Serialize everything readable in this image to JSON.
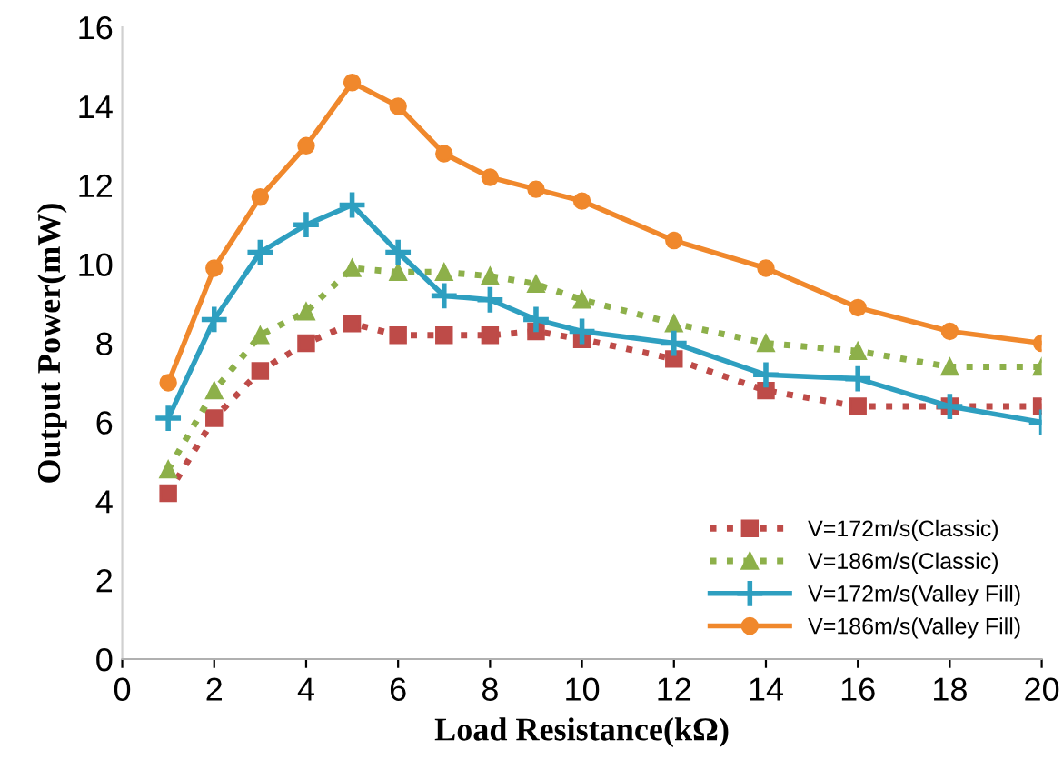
{
  "chart_data": {
    "type": "line",
    "xlabel": "Load Resistance(kΩ)",
    "ylabel": "Output Power(mW)",
    "x": [
      1,
      2,
      3,
      4,
      5,
      6,
      7,
      8,
      9,
      10,
      12,
      14,
      16,
      18,
      20
    ],
    "xlim": [
      0,
      20
    ],
    "xticks": [
      0,
      2,
      4,
      6,
      8,
      10,
      12,
      14,
      16,
      18,
      20
    ],
    "ylim": [
      0,
      16
    ],
    "yticks": [
      0,
      2,
      4,
      6,
      8,
      10,
      12,
      14,
      16
    ],
    "grid": false,
    "legend": "bottom right",
    "series": [
      {
        "name": "V=172m/s(Classic)",
        "color": "#be4b48",
        "marker": "square",
        "line_style": "dotted",
        "values": [
          4.2,
          6.1,
          7.3,
          8.0,
          8.5,
          8.2,
          8.2,
          8.2,
          8.3,
          8.1,
          7.6,
          6.8,
          6.4,
          6.4,
          6.4
        ]
      },
      {
        "name": "V=186m/s(Classic)",
        "color": "#8db04a",
        "marker": "triangle",
        "line_style": "dotted",
        "values": [
          4.8,
          6.8,
          8.2,
          8.8,
          9.9,
          9.8,
          9.8,
          9.7,
          9.5,
          9.1,
          8.5,
          8.0,
          7.8,
          7.4,
          7.4
        ]
      },
      {
        "name": "V=172m/s(Valley Fill)",
        "color": "#2e9fc0",
        "marker": "cross",
        "line_style": "solid",
        "values": [
          6.1,
          8.6,
          10.3,
          11.0,
          11.5,
          10.3,
          9.2,
          9.1,
          8.6,
          8.3,
          8.0,
          7.2,
          7.1,
          6.4,
          6.0
        ]
      },
      {
        "name": "V=186m/s(Valley Fill)",
        "color": "#f0882c",
        "marker": "circle",
        "line_style": "solid",
        "values": [
          7.0,
          9.9,
          11.7,
          13.0,
          14.6,
          14.0,
          12.8,
          12.2,
          11.9,
          11.6,
          10.6,
          9.9,
          8.9,
          8.3,
          8.0
        ]
      }
    ]
  }
}
